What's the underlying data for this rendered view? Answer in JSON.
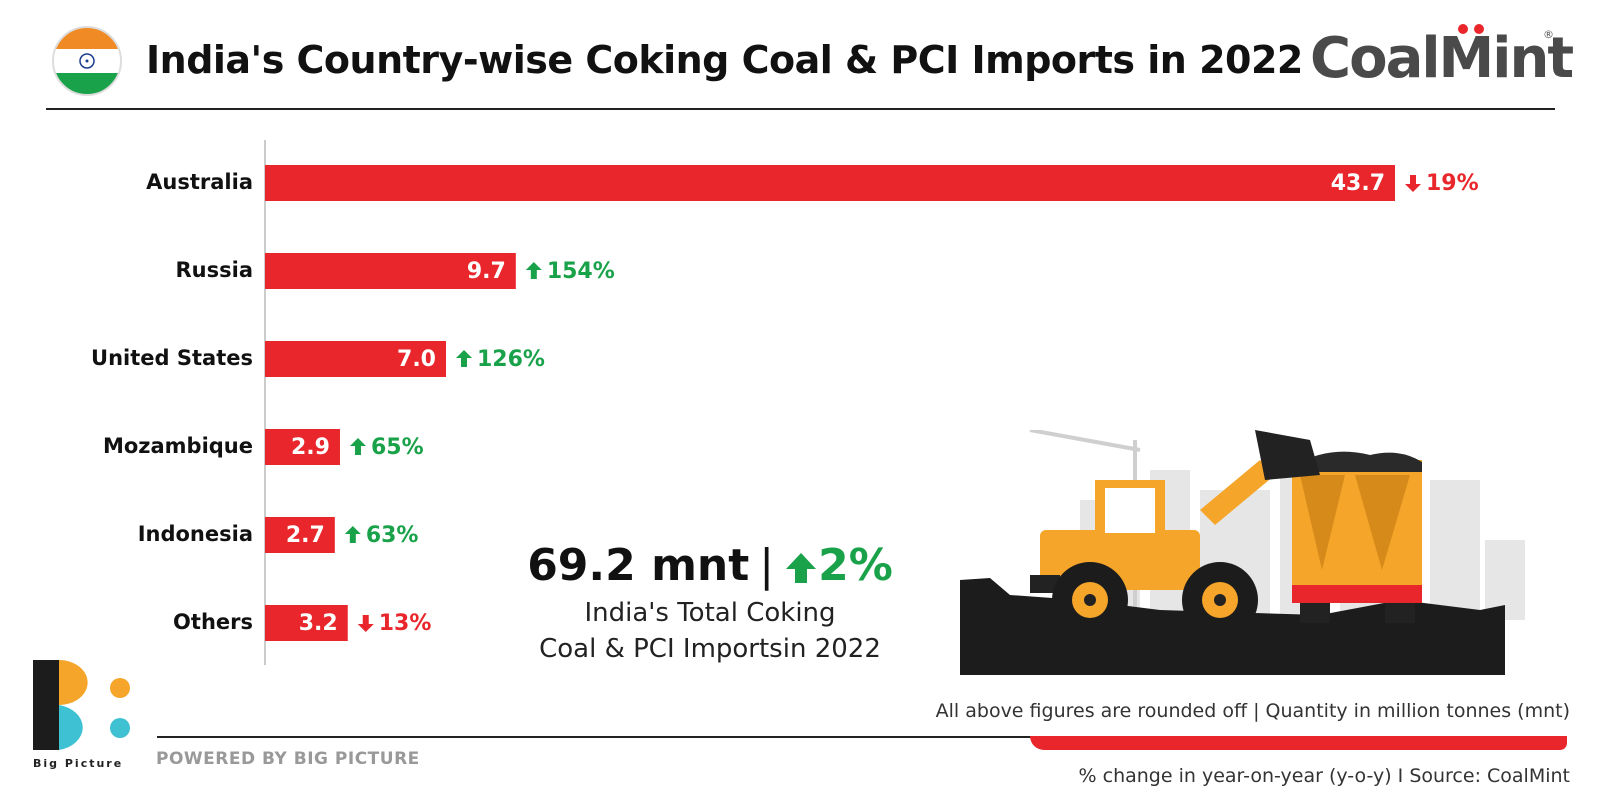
{
  "header": {
    "title": "India's Country-wise Coking Coal & PCI Imports in 2022",
    "brand": "CoalMint",
    "brand_reg": "®"
  },
  "colors": {
    "bar": "#e8262b",
    "up": "#1aa24a",
    "down": "#e8262b",
    "text": "#111111"
  },
  "chart_data": {
    "type": "bar",
    "orientation": "horizontal",
    "title": "India's Country-wise Coking Coal & PCI Imports in 2022",
    "categories": [
      "Australia",
      "Russia",
      "United States",
      "Mozambique",
      "Indonesia",
      "Others"
    ],
    "values": [
      43.7,
      9.7,
      7.0,
      2.9,
      2.7,
      3.2
    ],
    "value_labels": [
      "43.7",
      "9.7",
      "7.0",
      "2.9",
      "2.7",
      "3.2"
    ],
    "changes": [
      {
        "direction": "down",
        "label": "19%"
      },
      {
        "direction": "up",
        "label": "154%"
      },
      {
        "direction": "up",
        "label": "126%"
      },
      {
        "direction": "up",
        "label": "65%"
      },
      {
        "direction": "up",
        "label": "63%"
      },
      {
        "direction": "down",
        "label": "13%"
      }
    ],
    "xlim": [
      0,
      43.7
    ],
    "grid": false
  },
  "total": {
    "value": "69.2 mnt",
    "separator": "|",
    "change": "2%",
    "change_direction": "up",
    "caption_line1": "India's Total Coking",
    "caption_line2": "Coal & PCI Importsin 2022"
  },
  "footer": {
    "rounded_note": "All above figures are rounded off | Quantity in million tonnes (mnt)",
    "source_note": "% change in year-on-year (y-o-y)  I  Source: CoalMint",
    "powered_by": "POWERED BY BIG PICTURE",
    "logo_label": "Big Picture"
  }
}
